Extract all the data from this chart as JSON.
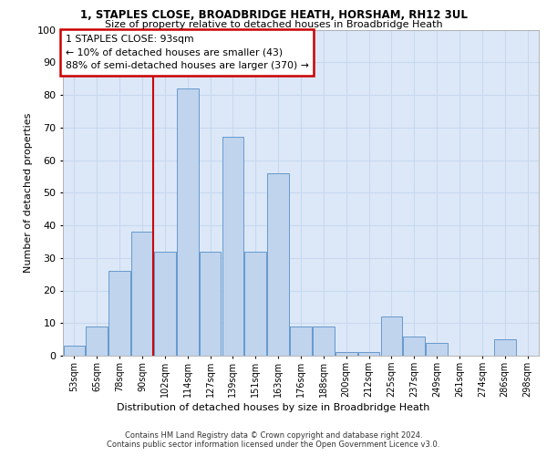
{
  "title1": "1, STAPLES CLOSE, BROADBRIDGE HEATH, HORSHAM, RH12 3UL",
  "title2": "Size of property relative to detached houses in Broadbridge Heath",
  "xlabel": "Distribution of detached houses by size in Broadbridge Heath",
  "ylabel": "Number of detached properties",
  "categories": [
    "53sqm",
    "65sqm",
    "78sqm",
    "90sqm",
    "102sqm",
    "114sqm",
    "127sqm",
    "139sqm",
    "151sqm",
    "163sqm",
    "176sqm",
    "188sqm",
    "200sqm",
    "212sqm",
    "225sqm",
    "237sqm",
    "249sqm",
    "261sqm",
    "274sqm",
    "286sqm",
    "298sqm"
  ],
  "values": [
    3,
    9,
    26,
    38,
    32,
    82,
    32,
    67,
    32,
    56,
    9,
    9,
    1,
    1,
    12,
    6,
    4,
    0,
    0,
    5,
    0
  ],
  "bar_color": "#c0d4ee",
  "bar_edge_color": "#6699cc",
  "vline_color": "#cc0000",
  "vline_x": 3.47,
  "annotation_text": "1 STAPLES CLOSE: 93sqm\n← 10% of detached houses are smaller (43)\n88% of semi-detached houses are larger (370) →",
  "annotation_box_color": "#ffffff",
  "annotation_box_edge": "#cc0000",
  "ylim": [
    0,
    100
  ],
  "yticks": [
    0,
    10,
    20,
    30,
    40,
    50,
    60,
    70,
    80,
    90,
    100
  ],
  "grid_color": "#c8d8ee",
  "bg_color": "#dce8f8",
  "footer1": "Contains HM Land Registry data © Crown copyright and database right 2024.",
  "footer2": "Contains public sector information licensed under the Open Government Licence v3.0."
}
